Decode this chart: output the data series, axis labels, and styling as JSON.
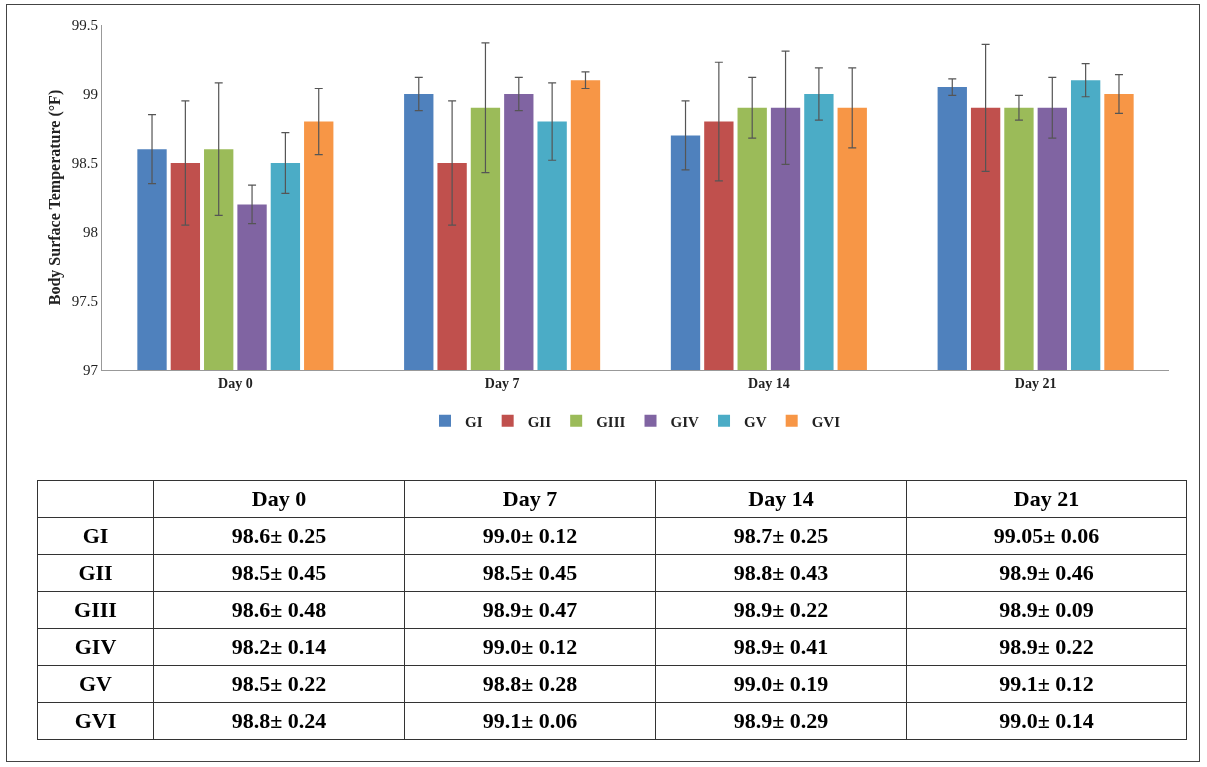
{
  "chart_data": {
    "type": "bar",
    "ylabel": "Body Surface Temperature (°F)",
    "categories": [
      "Day 0",
      "Day 7",
      "Day 14",
      "Day 21"
    ],
    "ylim": [
      97,
      99.5
    ],
    "yticks": [
      97,
      97.5,
      98,
      98.5,
      99,
      99.5
    ],
    "grid": false,
    "legend": "bottom",
    "series": [
      {
        "name": "GI",
        "color": "#4f81bd",
        "values": [
          98.6,
          99.0,
          98.7,
          99.05
        ],
        "errors": [
          0.25,
          0.12,
          0.25,
          0.06
        ],
        "value_labels": [
          "98.6± 0.25",
          "99.0± 0.12",
          "98.7± 0.25",
          "99.05± 0.06"
        ]
      },
      {
        "name": "GII",
        "color": "#c0504d",
        "values": [
          98.5,
          98.5,
          98.8,
          98.9
        ],
        "errors": [
          0.45,
          0.45,
          0.43,
          0.46
        ],
        "value_labels": [
          "98.5± 0.45",
          "98.5± 0.45",
          "98.8± 0.43",
          "98.9± 0.46"
        ]
      },
      {
        "name": "GIII",
        "color": "#9bbb59",
        "values": [
          98.6,
          98.9,
          98.9,
          98.9
        ],
        "errors": [
          0.48,
          0.47,
          0.22,
          0.09
        ],
        "value_labels": [
          "98.6± 0.48",
          "98.9± 0.47",
          "98.9± 0.22",
          "98.9± 0.09"
        ]
      },
      {
        "name": "GIV",
        "color": "#8064a2",
        "values": [
          98.2,
          99.0,
          98.9,
          98.9
        ],
        "errors": [
          0.14,
          0.12,
          0.41,
          0.22
        ],
        "value_labels": [
          "98.2± 0.14",
          "99.0± 0.12",
          "98.9± 0.41",
          "98.9± 0.22"
        ]
      },
      {
        "name": "GV",
        "color": "#4bacc6",
        "values": [
          98.5,
          98.8,
          99.0,
          99.1
        ],
        "errors": [
          0.22,
          0.28,
          0.19,
          0.12
        ],
        "value_labels": [
          "98.5± 0.22",
          "98.8± 0.28",
          "99.0± 0.19",
          "99.1± 0.12"
        ]
      },
      {
        "name": "GVI",
        "color": "#f79646",
        "values": [
          98.8,
          99.1,
          98.9,
          99.0
        ],
        "errors": [
          0.24,
          0.06,
          0.29,
          0.14
        ],
        "value_labels": [
          "98.8± 0.24",
          "99.1± 0.06",
          "98.9± 0.29",
          "99.0± 0.14"
        ]
      }
    ]
  }
}
